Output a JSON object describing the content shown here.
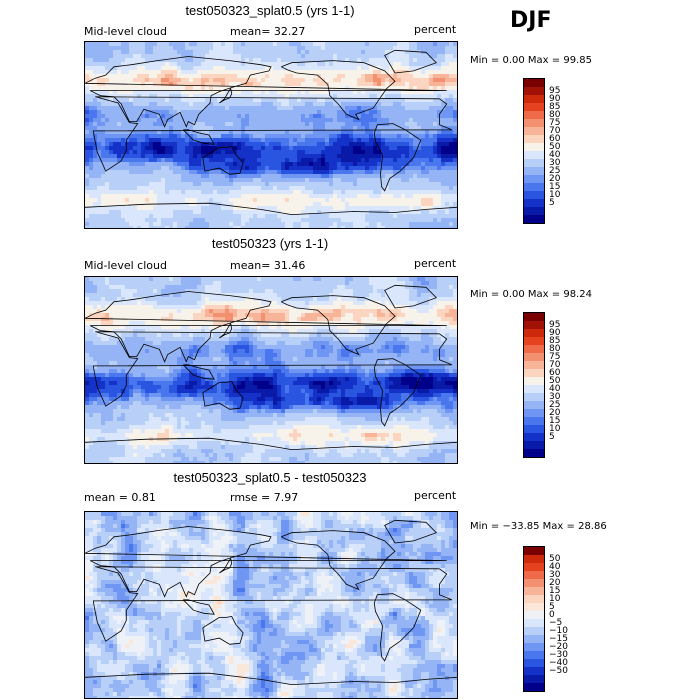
{
  "season": "DJF",
  "colors": {
    "seq": [
      "#00008b",
      "#0a1aa8",
      "#1432c8",
      "#2a55e0",
      "#4a77ee",
      "#6f96f2",
      "#95b4f5",
      "#b8cff8",
      "#d9e6fb",
      "#f7f2ea",
      "#fbd5c0",
      "#f8b499",
      "#f39070",
      "#ee6a48",
      "#e5421f",
      "#cc2a0a",
      "#a01205",
      "#7a0000"
    ],
    "div": [
      "#00008b",
      "#0a1aa8",
      "#1432c8",
      "#2a55e0",
      "#4a77ee",
      "#6f96f2",
      "#95b4f5",
      "#b8cff8",
      "#d9e6fb",
      "#eef2f6",
      "#fbe6da",
      "#fbd5c0",
      "#f8b499",
      "#f39070",
      "#ee6a48",
      "#e5421f",
      "#cc2a0a",
      "#7a0000"
    ]
  },
  "panels": [
    {
      "title": "test050323_splat0.5 (yrs 1-1)",
      "left_label": "Mid-level cloud",
      "stat": "mean=  32.27",
      "units": "percent",
      "minmax": "Min =    0.00 Max =   99.85",
      "colorbar_labels": [
        "95",
        "90",
        "85",
        "80",
        "75",
        "70",
        "60",
        "50",
        "40",
        "30",
        "25",
        "20",
        "15",
        "10",
        "5"
      ]
    },
    {
      "title": "test050323 (yrs 1-1)",
      "left_label": "Mid-level cloud",
      "stat": "mean=  31.46",
      "units": "percent",
      "minmax": "Min =    0.00 Max =   98.24",
      "colorbar_labels": [
        "95",
        "90",
        "85",
        "80",
        "75",
        "70",
        "60",
        "50",
        "40",
        "30",
        "25",
        "20",
        "15",
        "10",
        "5"
      ]
    },
    {
      "title": "test050323_splat0.5 - test050323",
      "left_label": "mean =    0.81",
      "stat": "rmse =    7.97",
      "units": "percent",
      "minmax": "Min = −33.85 Max =   28.86",
      "colorbar_labels": [
        "50",
        "40",
        "30",
        "20",
        "15",
        "10",
        "5",
        "0",
        "−5",
        "−10",
        "−15",
        "−20",
        "−30",
        "−40",
        "−50"
      ]
    }
  ],
  "chart_data": [
    {
      "type": "heatmap",
      "title": "test050323_splat0.5 (yrs 1-1)",
      "variable": "Mid-level cloud",
      "units": "percent",
      "mean": 32.27,
      "min": 0.0,
      "max": 99.85,
      "levels": [
        5,
        10,
        15,
        20,
        25,
        30,
        40,
        50,
        60,
        70,
        75,
        80,
        85,
        90,
        95
      ]
    },
    {
      "type": "heatmap",
      "title": "test050323 (yrs 1-1)",
      "variable": "Mid-level cloud",
      "units": "percent",
      "mean": 31.46,
      "min": 0.0,
      "max": 98.24,
      "levels": [
        5,
        10,
        15,
        20,
        25,
        30,
        40,
        50,
        60,
        70,
        75,
        80,
        85,
        90,
        95
      ]
    },
    {
      "type": "heatmap",
      "title": "test050323_splat0.5 - test050323",
      "units": "percent",
      "mean": 0.81,
      "rmse": 7.97,
      "min": -33.85,
      "max": 28.86,
      "levels": [
        -50,
        -40,
        -30,
        -20,
        -15,
        -10,
        -5,
        0,
        5,
        10,
        15,
        20,
        30,
        40,
        50
      ]
    }
  ]
}
